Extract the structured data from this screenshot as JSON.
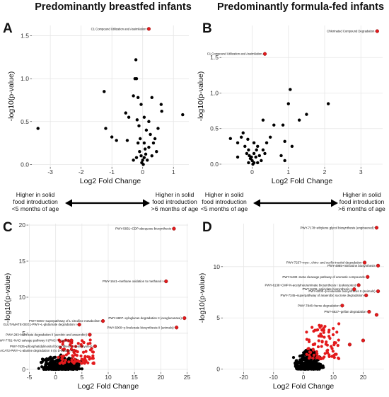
{
  "titles": {
    "left": "Predominantly breastfed infants",
    "right": "Predominantly formula-fed infants"
  },
  "panel_letters": [
    "A",
    "B",
    "C",
    "D"
  ],
  "middle": {
    "left_label_line1": "Higher in solid",
    "left_label_line2": "food introduction",
    "left_label_line3": "<5 months of age",
    "right_label_line1": "Higher in solid",
    "right_label_line2": "food introduction",
    "right_label_line3": ">6 months of age"
  },
  "colors": {
    "highlight": "#e31a1c",
    "point": "#000000",
    "grid": "#e6e6e6"
  },
  "chart_data": [
    {
      "id": "A",
      "type": "scatter",
      "xlabel": "Log2 Fold Change",
      "ylabel": "-log10(p-value)",
      "xlim": [
        -3.6,
        1.5
      ],
      "ylim": [
        -0.03,
        1.62
      ],
      "xticks": [
        -3,
        -2,
        -1,
        0,
        1
      ],
      "yticks": [
        0.0,
        0.5,
        1.0,
        1.5
      ],
      "tick_labels_x": [
        "-3",
        "-2",
        "-1",
        "0",
        "1"
      ],
      "tick_labels_y": [
        "0.0",
        "0.5",
        "1.0",
        "1.5"
      ],
      "grid": true,
      "black_points": [
        [
          -3.4,
          0.42
        ],
        [
          -1.25,
          0.85
        ],
        [
          -1.2,
          0.42
        ],
        [
          -1.0,
          0.32
        ],
        [
          -0.85,
          0.28
        ],
        [
          -0.55,
          0.6
        ],
        [
          -0.5,
          0.28
        ],
        [
          -0.45,
          0.55
        ],
        [
          -0.3,
          0.8
        ],
        [
          -0.25,
          1.0
        ],
        [
          -0.2,
          1.0
        ],
        [
          -0.22,
          1.22
        ],
        [
          -0.15,
          0.78
        ],
        [
          -0.05,
          0.7
        ],
        [
          -0.18,
          0.52
        ],
        [
          -0.12,
          0.45
        ],
        [
          -0.08,
          0.3
        ],
        [
          -0.15,
          0.25
        ],
        [
          -0.1,
          0.15
        ],
        [
          -0.05,
          0.1
        ],
        [
          0.0,
          0.05
        ],
        [
          0.02,
          0.0
        ],
        [
          -0.03,
          0.02
        ],
        [
          0.05,
          0.08
        ],
        [
          0.1,
          0.12
        ],
        [
          0.08,
          0.18
        ],
        [
          -0.2,
          0.08
        ],
        [
          0.15,
          0.05
        ],
        [
          0.2,
          0.2
        ],
        [
          0.25,
          0.35
        ],
        [
          0.3,
          0.1
        ],
        [
          0.05,
          0.25
        ],
        [
          0.12,
          0.4
        ],
        [
          0.2,
          0.5
        ],
        [
          0.3,
          0.78
        ],
        [
          0.4,
          0.3
        ],
        [
          0.45,
          0.15
        ],
        [
          0.5,
          0.42
        ],
        [
          0.6,
          0.7
        ],
        [
          0.62,
          0.62
        ],
        [
          0.05,
          0.55
        ],
        [
          -0.3,
          0.05
        ],
        [
          1.3,
          0.58
        ],
        [
          0.35,
          0.25
        ]
      ],
      "red_points": [
        {
          "x": 0.2,
          "y": 1.58,
          "label": "C1 Compound Utilization and Assimilation"
        }
      ]
    },
    {
      "id": "B",
      "type": "scatter",
      "xlabel": "Log2 Fold Change",
      "ylabel": "-log10(p-value)",
      "xlim": [
        -0.85,
        3.6
      ],
      "ylim": [
        -0.04,
        1.95
      ],
      "xticks": [
        0,
        1,
        2,
        3
      ],
      "yticks": [
        0.0,
        0.5,
        1.0,
        1.5
      ],
      "tick_labels_x": [
        "0",
        "1",
        "2",
        "3"
      ],
      "tick_labels_y": [
        "0.0",
        "0.5",
        "1.0",
        "1.5"
      ],
      "grid": true,
      "black_points": [
        [
          -0.6,
          0.36
        ],
        [
          -0.4,
          0.3
        ],
        [
          -0.3,
          0.38
        ],
        [
          -0.25,
          0.44
        ],
        [
          -0.2,
          0.25
        ],
        [
          -0.15,
          0.15
        ],
        [
          -0.12,
          0.35
        ],
        [
          -0.1,
          0.2
        ],
        [
          -0.08,
          0.12
        ],
        [
          -0.05,
          0.08
        ],
        [
          0.0,
          0.05
        ],
        [
          0.02,
          0.0
        ],
        [
          0.05,
          0.02
        ],
        [
          -0.02,
          0.1
        ],
        [
          0.05,
          0.15
        ],
        [
          0.1,
          0.1
        ],
        [
          0.12,
          0.2
        ],
        [
          0.15,
          0.25
        ],
        [
          0.2,
          0.12
        ],
        [
          0.25,
          0.05
        ],
        [
          0.3,
          0.2
        ],
        [
          0.3,
          0.62
        ],
        [
          0.35,
          0.15
        ],
        [
          0.4,
          0.3
        ],
        [
          0.5,
          0.38
        ],
        [
          0.6,
          0.55
        ],
        [
          0.8,
          0.12
        ],
        [
          0.85,
          0.55
        ],
        [
          0.9,
          0.32
        ],
        [
          1.0,
          0.85
        ],
        [
          1.05,
          1.05
        ],
        [
          1.3,
          0.62
        ],
        [
          1.5,
          0.7
        ],
        [
          1.1,
          0.25
        ],
        [
          0.9,
          0.05
        ],
        [
          2.1,
          0.85
        ],
        [
          0.15,
          0.02
        ],
        [
          -0.1,
          0.02
        ],
        [
          0.05,
          0.3
        ],
        [
          -0.4,
          0.1
        ]
      ],
      "red_points": [
        {
          "x": 0.35,
          "y": 1.55,
          "label": "C1 Compound Utilization and Assimilation"
        },
        {
          "x": 3.45,
          "y": 1.87,
          "label": "Chlorinated Compound Degradation"
        }
      ]
    },
    {
      "id": "C",
      "type": "scatter",
      "xlabel": "Log2 Fold Change",
      "ylabel": "-log10(p-value)",
      "xlim": [
        -5.2,
        25.2
      ],
      "ylim": [
        -0.4,
        20.2
      ],
      "xticks": [
        -5,
        0,
        5,
        10,
        15,
        20,
        25
      ],
      "yticks": [
        0,
        5,
        10,
        15,
        20
      ],
      "tick_labels_x": [
        "-5",
        "0",
        "5",
        "10",
        "15",
        "20",
        "25"
      ],
      "tick_labels_y": [
        "0",
        "5",
        "10",
        "15",
        "20"
      ],
      "grid": true,
      "black_cloud": {
        "x_range": [
          -3.5,
          5.5
        ],
        "y_max": 2.0
      },
      "red_cloud": {
        "x_range": [
          0.5,
          7.5
        ],
        "y_range": [
          0.8,
          4.2
        ]
      },
      "red_points": [
        {
          "x": 22.5,
          "y": 19.5,
          "label": "PWY-5831~CDP-abequose biosynthesis"
        },
        {
          "x": 21.0,
          "y": 12.2,
          "label": "PWY-1641~methane oxidation to methanol I"
        },
        {
          "x": 24.5,
          "y": 7.1,
          "label": "PWY-6807~xyloglucan degradation II (exoglucanase)"
        },
        {
          "x": 9.0,
          "y": 6.7,
          "label": "PWY-5004~superpathway of L-citrulline metabolism"
        },
        {
          "x": 4.5,
          "y": 6.2,
          "label": "GLUTAMATE-DEG1-PWY~L-glutamate degradation I"
        },
        {
          "x": 23.0,
          "y": 5.8,
          "label": "PWY-6000~γ-linolenate biosynthesis II (animals)"
        },
        {
          "x": 6.5,
          "y": 4.8,
          "label": "PWY-283~benzoate degradation II (aerobic and anaerobic)"
        },
        {
          "x": 3.0,
          "y": 4.0,
          "label": "PWY-7761~NAD salvage pathway II (PNC IV cycle)"
        },
        {
          "x": 7.5,
          "y": 3.2,
          "label": "PWY-7625~phosphatidylinositol biosynthesis II (eukaryotes)"
        },
        {
          "x": 3.5,
          "y": 2.6,
          "label": "ALACAT2-PWY~L-alanine degradation II (to D-lactate)"
        }
      ]
    },
    {
      "id": "D",
      "type": "scatter",
      "xlabel": "Log2 Fold Change",
      "ylabel": "-log10(p-value)",
      "xlim": [
        -27,
        27
      ],
      "ylim": [
        -0.3,
        14.2
      ],
      "xticks": [
        -20,
        -10,
        0,
        10,
        20
      ],
      "yticks": [
        0,
        5,
        10
      ],
      "tick_labels_x": [
        "-20",
        "-10",
        "0",
        "10",
        "20"
      ],
      "tick_labels_y": [
        "0",
        "5",
        "10"
      ],
      "grid": true,
      "black_cloud": {
        "x_range": [
          -3.5,
          7.0
        ],
        "y_max": 2.0
      },
      "red_cloud": {
        "x_range": [
          1.0,
          12.0
        ],
        "y_range": [
          1.0,
          4.5
        ]
      },
      "red_points": [
        {
          "x": 24.5,
          "y": 13.8,
          "label": "PWY-7178~ethylene glycol biosynthesis (engineered)"
        },
        {
          "x": 20.5,
          "y": 10.4,
          "label": "PWY-7237~myo-, chiro- and scyllo-inositol degradation"
        },
        {
          "x": 25.0,
          "y": 10.1,
          "label": "PWY-4985~mimosine biosynthesis"
        },
        {
          "x": 21.5,
          "y": 9.0,
          "label": "PWY-5430~meta cleavage pathway of aromatic compounds"
        },
        {
          "x": 18.5,
          "y": 8.2,
          "label": "PWY-6138~CMP-N-acetylneuraminate biosynthesis I (eukaryotes)"
        },
        {
          "x": 25.0,
          "y": 7.6,
          "label": "PWY-6000~γ-linolenate biosynthesis II (animals)"
        },
        {
          "x": 17.0,
          "y": 7.8,
          "label": "PWY-6406~salicylate biosynthesis I"
        },
        {
          "x": 21.0,
          "y": 7.2,
          "label": "PWY-7345~superpathway of anaerobic sucrose degradation"
        },
        {
          "x": 13.0,
          "y": 6.2,
          "label": "PWY-7846~heme degradation"
        },
        {
          "x": 22.0,
          "y": 5.6,
          "label": "PWY-6827~gellan degradation"
        },
        {
          "x": 24.5,
          "y": 5.3,
          "label": ""
        },
        {
          "x": 15.5,
          "y": 2.4,
          "label": ""
        },
        {
          "x": 20.0,
          "y": 2.8,
          "label": ""
        }
      ]
    }
  ]
}
